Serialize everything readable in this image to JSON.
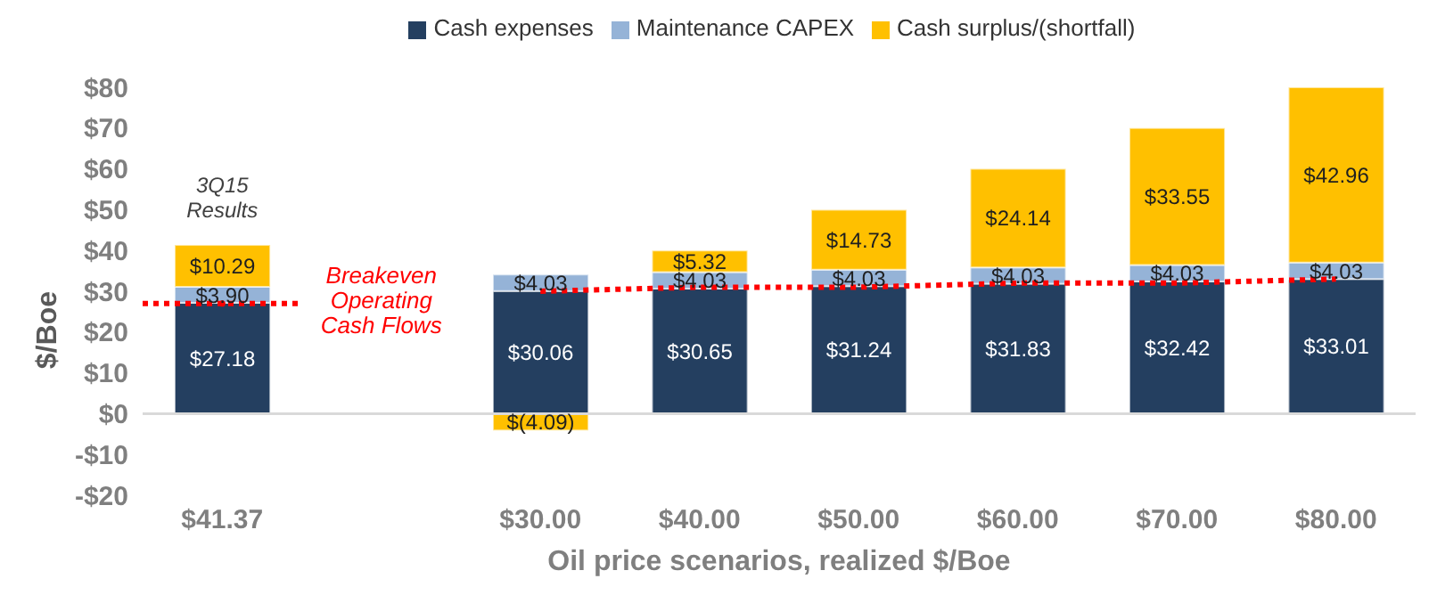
{
  "chart_data": {
    "type": "bar",
    "stacked": true,
    "xlabel": "Oil price scenarios, realized $/Boe",
    "ylabel": "$/Boe",
    "categories": [
      "$41.37",
      null,
      "$30.00",
      "$40.00",
      "$50.00",
      "$60.00",
      "$70.00",
      "$80.00"
    ],
    "series": [
      {
        "name": "Cash expenses",
        "color": "#243f60",
        "values": [
          27.18,
          null,
          30.06,
          30.65,
          31.24,
          31.83,
          32.42,
          33.01
        ],
        "value_labels": [
          "$27.18",
          null,
          "$30.06",
          "$30.65",
          "$31.24",
          "$31.83",
          "$32.42",
          "$33.01"
        ]
      },
      {
        "name": "Maintenance CAPEX",
        "color": "#95b3d7",
        "values": [
          3.9,
          null,
          4.03,
          4.03,
          4.03,
          4.03,
          4.03,
          4.03
        ],
        "value_labels": [
          "$3.90",
          null,
          "$4.03",
          "$4.03",
          "$4.03",
          "$4.03",
          "$4.03",
          "$4.03"
        ]
      },
      {
        "name": "Cash surplus/(shortfall)",
        "color": "#ffc000",
        "values": [
          10.29,
          null,
          -4.09,
          5.32,
          14.73,
          24.14,
          33.55,
          42.96
        ],
        "value_labels": [
          "$10.29",
          null,
          "$(4.09)",
          "$5.32",
          "$14.73",
          "$24.14",
          "$33.55",
          "$42.96"
        ]
      },
      {
        "type": "line",
        "color": "#ff0000",
        "line_style": "dotted",
        "marker": "none",
        "values": [
          27,
          null,
          30,
          31,
          31,
          32,
          32,
          33
        ]
      }
    ],
    "ylim": [
      -20,
      80
    ],
    "yticks": [
      {
        "value": -20,
        "label": "-$20"
      },
      {
        "value": -10,
        "label": "-$10"
      },
      {
        "value": 0,
        "label": "$0"
      },
      {
        "value": 10,
        "label": "$10"
      },
      {
        "value": 20,
        "label": "$20"
      },
      {
        "value": 30,
        "label": "$30"
      },
      {
        "value": 40,
        "label": "$40"
      },
      {
        "value": 50,
        "label": "$50"
      },
      {
        "value": 60,
        "label": "$60"
      },
      {
        "value": 70,
        "label": "$70"
      },
      {
        "value": 80,
        "label": "$80"
      }
    ],
    "ref_lines": [
      {
        "axis": "y",
        "value": 0,
        "color": "#d9d9d9"
      }
    ],
    "annotations": [
      "3Q15 Results",
      "Breakeven Operating Cash Flows"
    ],
    "legend": "top",
    "grid": false
  }
}
